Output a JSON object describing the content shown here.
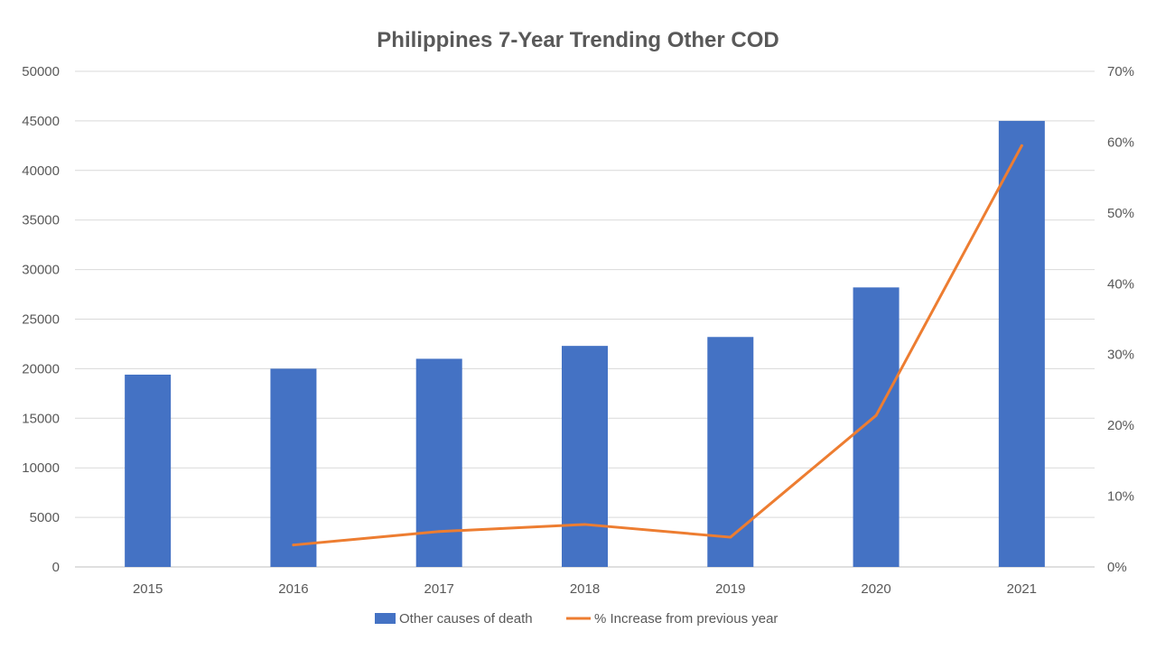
{
  "chart_data": {
    "type": "bar",
    "title": "Philippines 7-Year Trending Other COD",
    "categories": [
      "2015",
      "2016",
      "2017",
      "2018",
      "2019",
      "2020",
      "2021"
    ],
    "series": [
      {
        "name": "Other causes of death",
        "type": "bar",
        "axis": "left",
        "color": "#4472C4",
        "values": [
          19400,
          20000,
          21000,
          22300,
          23200,
          28200,
          45000
        ]
      },
      {
        "name": "% Increase from previous year",
        "type": "line",
        "axis": "right",
        "color": "#ED7D31",
        "values": [
          null,
          0.031,
          0.05,
          0.06,
          0.042,
          0.214,
          0.595
        ]
      }
    ],
    "y_left": {
      "min": 0,
      "max": 50000,
      "ticks": [
        "0",
        "5000",
        "10000",
        "15000",
        "20000",
        "25000",
        "30000",
        "35000",
        "40000",
        "45000",
        "50000"
      ]
    },
    "y_right": {
      "min": 0,
      "max": 0.7,
      "ticks": [
        "0%",
        "10%",
        "20%",
        "30%",
        "40%",
        "50%",
        "60%",
        "70%"
      ]
    },
    "grid": true,
    "legend_position": "bottom"
  }
}
